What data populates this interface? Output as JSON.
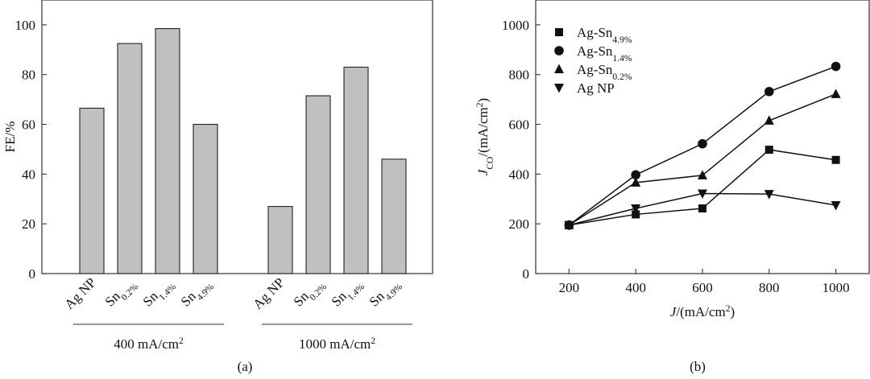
{
  "chart_data": [
    {
      "type": "bar",
      "panel_label": "(a)",
      "ylabel": "FE/%",
      "ylim": [
        0,
        110
      ],
      "yticks": [
        "0",
        "20",
        "40",
        "60",
        "80",
        "100"
      ],
      "bar_color": "#c0c0c0",
      "groups": [
        {
          "label": "400 mA/cm2",
          "categories": [
            {
              "base": "Ag NP",
              "sub": ""
            },
            {
              "base": "Sn",
              "sub": "0.2%"
            },
            {
              "base": "Sn",
              "sub": "1.4%"
            },
            {
              "base": "Sn",
              "sub": "4.9%"
            }
          ],
          "values": [
            66.5,
            92.5,
            98.5,
            60
          ]
        },
        {
          "label": "1000 mA/cm2",
          "categories": [
            {
              "base": "Ag NP",
              "sub": ""
            },
            {
              "base": "Sn",
              "sub": "0.2%"
            },
            {
              "base": "Sn",
              "sub": "1.4%"
            },
            {
              "base": "Sn",
              "sub": "4.9%"
            }
          ],
          "values": [
            27,
            71.5,
            83,
            46
          ]
        }
      ]
    },
    {
      "type": "line",
      "panel_label": "(b)",
      "xlabel": "J/(mA/cm2)",
      "ylabel": "JCO/(mA/cm2)",
      "xlim": [
        100,
        1100
      ],
      "ylim": [
        0,
        1100
      ],
      "xticks": [
        "200",
        "400",
        "600",
        "800",
        "1000"
      ],
      "yticks": [
        "0",
        "200",
        "400",
        "600",
        "800",
        "1000"
      ],
      "x": [
        200,
        400,
        600,
        800,
        1000
      ],
      "series": [
        {
          "name": "Ag-Sn",
          "sub": "4.9%",
          "marker": "square",
          "values": [
            195,
            238,
            262,
            498,
            457
          ]
        },
        {
          "name": "Ag-Sn",
          "sub": "1.4%",
          "marker": "circle",
          "values": [
            195,
            397,
            522,
            732,
            833
          ]
        },
        {
          "name": "Ag-Sn",
          "sub": "0.2%",
          "marker": "triangle-up",
          "values": [
            195,
            366,
            395,
            615,
            722
          ]
        },
        {
          "name": "Ag NP",
          "sub": "",
          "marker": "triangle-down",
          "values": [
            195,
            262,
            322,
            320,
            275
          ]
        }
      ]
    }
  ]
}
